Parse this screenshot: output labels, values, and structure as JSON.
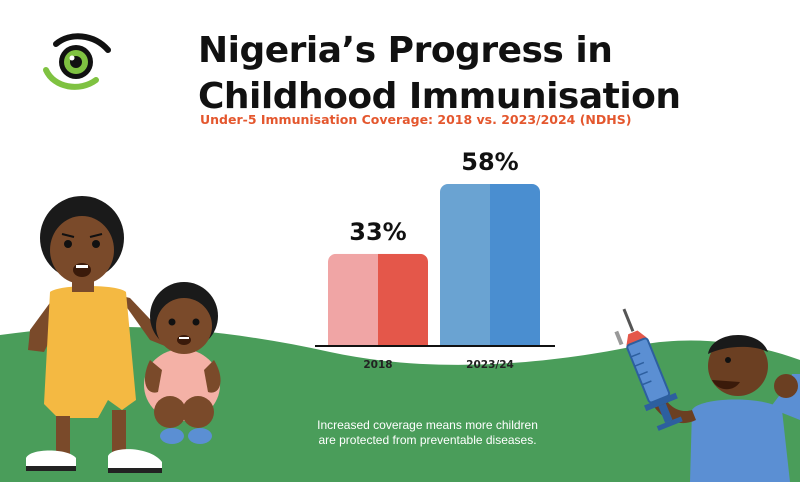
{
  "header": {
    "title_line1": "Nigeria’s Progress in",
    "title_line2": "Childhood Immunisation",
    "subtitle": "Under-5 Immunisation Coverage: 2018 vs. 2023/2024 (NDHS)"
  },
  "caption": {
    "line1": "Increased coverage means more children",
    "line2": "are protected from preventable diseases."
  },
  "colors": {
    "accent": "#e4572e",
    "bar_2018_light": "#f0a5a5",
    "bar_2018_dark": "#e4574a",
    "bar_2023_light": "#6aa3d2",
    "bar_2023_dark": "#4a8ed0",
    "grass": "#4a9d5a",
    "logo_green": "#7fc241"
  },
  "icons": [
    "eye-logo-icon",
    "syringe-icon"
  ],
  "chart_data": {
    "type": "bar",
    "categories": [
      "2018",
      "2023/24"
    ],
    "values": [
      33,
      58
    ],
    "value_labels": [
      "33%",
      "58%"
    ],
    "ylim": [
      0,
      58
    ],
    "grid": false,
    "legend": "none"
  }
}
